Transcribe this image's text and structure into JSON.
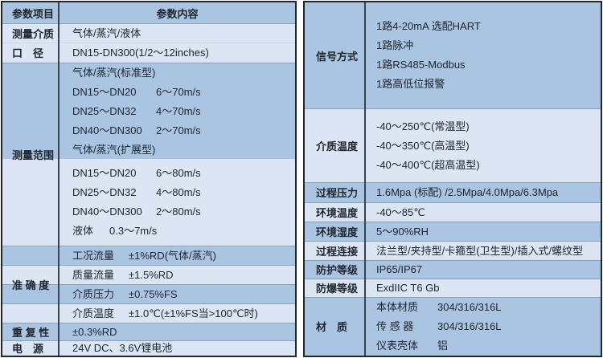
{
  "palette": {
    "band_dark": "#a9c5e2",
    "band_light": "#dbe5f3",
    "outer_border": "#20272e",
    "column_divider": "#39434d",
    "row_divider": "#8aa0b8",
    "text": "#20262e",
    "background": "#ffffff"
  },
  "left_table": {
    "header": {
      "param_item": "参数项目",
      "param_content": "参数内容"
    },
    "groups": [
      {
        "label": "测量介质",
        "segments": [
          {
            "band": "light",
            "rows": [
              "气体/蒸汽/液体"
            ]
          }
        ]
      },
      {
        "label": "口　径",
        "segments": [
          {
            "band": "light",
            "rows": [
              "DN15-DN300(1/2～12inches)"
            ]
          }
        ]
      },
      {
        "label": "测量范围",
        "kind": "range",
        "segments": [
          {
            "band": "dark",
            "rows": [
              "气体/蒸汽(标准型)",
              {
                "c1": "DN15～DN20",
                "c2": "6～70m/s"
              },
              {
                "c1": "DN25～DN32",
                "c2": "4～70m/s"
              },
              {
                "c1": "DN40～DN300",
                "c2": "2～70m/s"
              },
              "气体/蒸汽(扩展型)"
            ]
          },
          {
            "band": "light",
            "rows": [
              {
                "c1": "DN15～DN20",
                "c2": "6～80m/s"
              },
              {
                "c1": "DN25～DN32",
                "c2": "4～80m/s"
              },
              {
                "c1": "DN40～DN300",
                "c2": "2～80m/s"
              },
              {
                "c1": "液体",
                "c2": "0.3～7m/s"
              }
            ]
          }
        ]
      },
      {
        "label": "准 确 度",
        "kind": "acc",
        "segments": [
          {
            "band": "dark",
            "rows": [
              {
                "c1": "工况流量",
                "c2": "±1%RD(气体/蒸汽)"
              }
            ]
          },
          {
            "band": "light",
            "rows": [
              {
                "c1": "质量流量",
                "c2": "±1.5%RD"
              }
            ]
          },
          {
            "band": "dark",
            "rows": [
              {
                "c1": "介质压力",
                "c2": "±0.75%FS"
              }
            ]
          },
          {
            "band": "light",
            "rows": [
              {
                "c1": "介质温度",
                "c2": "±1.0℃(±1%FS当>100℃时)"
              }
            ]
          }
        ]
      },
      {
        "label": "重 复 性",
        "segments": [
          {
            "band": "dark",
            "rows": [
              "±0.3%RD"
            ]
          }
        ]
      },
      {
        "label": "电　源",
        "segments": [
          {
            "band": "light",
            "rows": [
              "24V DC、3.6V锂电池"
            ]
          }
        ]
      }
    ]
  },
  "right_table": {
    "groups": [
      {
        "label": "信号方式",
        "segments": [
          {
            "band": "dark",
            "rows": [
              "1路4-20mA 选配HART",
              "1路脉冲",
              "1路RS485-Modbus",
              "1路高低位报警"
            ]
          }
        ]
      },
      {
        "label": "介质温度",
        "segments": [
          {
            "band": "light",
            "rows": [
              "-40～250℃(常温型)",
              "-40～350℃(高温型)",
              "-40～400℃(超高温型)"
            ]
          }
        ]
      },
      {
        "label": "过程压力",
        "segments": [
          {
            "band": "dark",
            "rows": [
              "1.6Mpa (标配) /2.5Mpa/4.0Mpa/6.3Mpa"
            ]
          }
        ]
      },
      {
        "label": "环境温度",
        "segments": [
          {
            "band": "light",
            "rows": [
              "-40～85℃"
            ]
          }
        ]
      },
      {
        "label": "环境湿度",
        "segments": [
          {
            "band": "dark",
            "rows": [
              "5～90%RH"
            ]
          }
        ]
      },
      {
        "label": "过程连接",
        "segments": [
          {
            "band": "light",
            "rows": [
              "法兰型/夹持型/卡箍型(卫生型)/插入式/螺纹型"
            ]
          }
        ]
      },
      {
        "label": "防护等级",
        "segments": [
          {
            "band": "dark",
            "rows": [
              "IP65/IP67"
            ]
          }
        ]
      },
      {
        "label": "防爆等级",
        "segments": [
          {
            "band": "light",
            "rows": [
              "ExdIIC T6 Gb"
            ]
          }
        ]
      },
      {
        "label": "材　质",
        "kind": "mat",
        "segments": [
          {
            "band": "dark",
            "rows": [
              {
                "c1": "本体材质",
                "c2": "304/316/316L"
              },
              {
                "c1": "传 感 器",
                "c2": "304/316/316L"
              },
              {
                "c1": "仪表壳体",
                "c2": "铝"
              }
            ]
          }
        ]
      }
    ]
  }
}
